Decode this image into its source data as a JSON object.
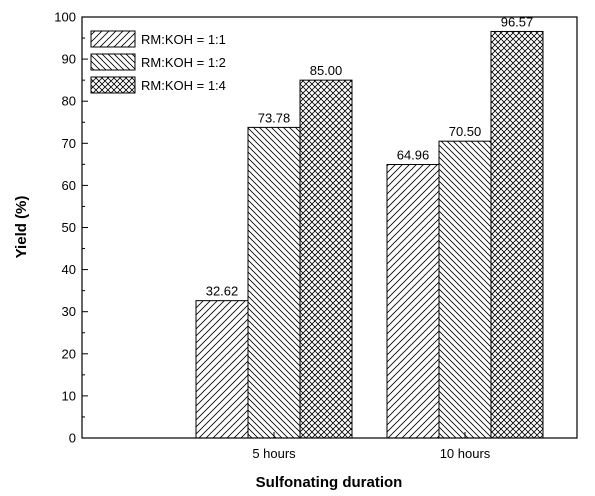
{
  "chart_data": {
    "type": "bar",
    "categories": [
      "5 hours",
      "10 hours"
    ],
    "series": [
      {
        "name": "RM:KOH = 1:1",
        "values": [
          32.62,
          64.96
        ],
        "labels": [
          "32.62",
          "64.96"
        ]
      },
      {
        "name": "RM:KOH = 1:2",
        "values": [
          73.78,
          70.5
        ],
        "labels": [
          "73.78",
          "70.50"
        ]
      },
      {
        "name": "RM:KOH = 1:4",
        "values": [
          85.0,
          96.57
        ],
        "labels": [
          "85.00",
          "96.57"
        ]
      }
    ],
    "xlabel": "Sulfonating duration",
    "ylabel": "Yield (%)",
    "ylim": [
      0,
      100
    ],
    "yticks": [
      "0",
      "10",
      "20",
      "30",
      "40",
      "50",
      "60",
      "70",
      "80",
      "90",
      "100"
    ],
    "grid": false,
    "legend_position": "top-left"
  }
}
